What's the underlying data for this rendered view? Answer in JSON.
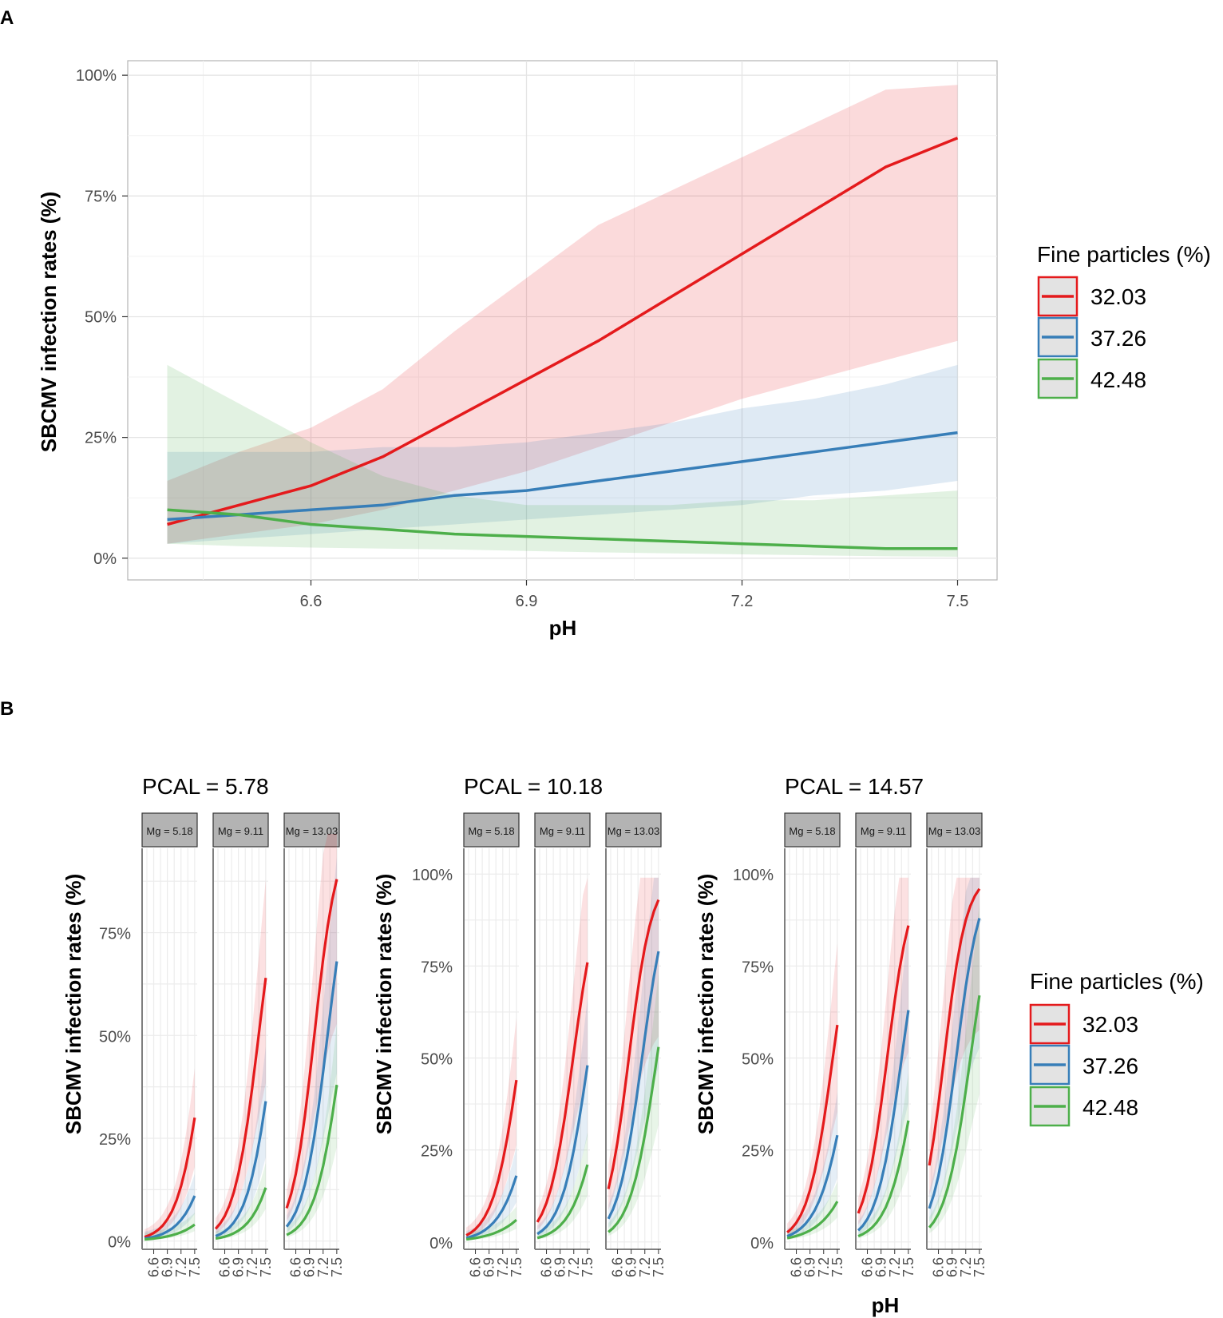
{
  "panel_labels": {
    "a": "A",
    "b": "B"
  },
  "colors": {
    "red": "#e41a1c",
    "blue": "#377eb8",
    "green": "#4daf4a",
    "grid": "#ebebeb",
    "strip": "#b3b3b3",
    "legend_key_bg": "#e3e3e3"
  },
  "legend": {
    "title": "Fine particles (%)",
    "items": [
      {
        "label": "32.03",
        "color": "#e41a1c"
      },
      {
        "label": "37.26",
        "color": "#377eb8"
      },
      {
        "label": "42.48",
        "color": "#4daf4a"
      }
    ]
  },
  "chart_data": [
    {
      "type": "line",
      "id": "panel-a",
      "title": "",
      "xlabel": "pH",
      "ylabel": "SBCMV infection rates (%)",
      "xlim": [
        6.345,
        7.555
      ],
      "ylim": [
        -0.045,
        1.03
      ],
      "x_ticks": [
        6.6,
        6.9,
        7.2,
        7.5
      ],
      "x_tick_labels": [
        "6.6",
        "6.9",
        "7.2",
        "7.5"
      ],
      "y_ticks": [
        0,
        0.25,
        0.5,
        0.75,
        1.0
      ],
      "y_tick_labels": [
        "0%",
        "25%",
        "50%",
        "75%",
        "100%"
      ],
      "x": [
        6.4,
        6.5,
        6.6,
        6.7,
        6.8,
        6.9,
        7.0,
        7.1,
        7.2,
        7.3,
        7.4,
        7.5
      ],
      "series": [
        {
          "name": "32.03",
          "color": "#e41a1c",
          "values": [
            0.07,
            0.11,
            0.15,
            0.21,
            0.29,
            0.37,
            0.45,
            0.54,
            0.63,
            0.72,
            0.81,
            0.87
          ],
          "lower": [
            0.03,
            0.05,
            0.07,
            0.1,
            0.14,
            0.18,
            0.23,
            0.28,
            0.33,
            0.37,
            0.41,
            0.45
          ],
          "upper": [
            0.16,
            0.22,
            0.27,
            0.35,
            0.47,
            0.58,
            0.69,
            0.76,
            0.83,
            0.9,
            0.97,
            0.98
          ]
        },
        {
          "name": "37.26",
          "color": "#377eb8",
          "values": [
            0.08,
            0.09,
            0.1,
            0.11,
            0.13,
            0.14,
            0.16,
            0.18,
            0.2,
            0.22,
            0.24,
            0.26
          ],
          "lower": [
            0.03,
            0.04,
            0.05,
            0.06,
            0.07,
            0.08,
            0.09,
            0.1,
            0.11,
            0.13,
            0.14,
            0.16
          ],
          "upper": [
            0.22,
            0.22,
            0.22,
            0.23,
            0.23,
            0.24,
            0.26,
            0.28,
            0.31,
            0.33,
            0.36,
            0.4
          ]
        },
        {
          "name": "42.48",
          "color": "#4daf4a",
          "values": [
            0.1,
            0.09,
            0.07,
            0.06,
            0.05,
            0.045,
            0.04,
            0.035,
            0.03,
            0.025,
            0.02,
            0.02
          ],
          "lower": [
            0.03,
            0.025,
            0.022,
            0.02,
            0.018,
            0.015,
            0.012,
            0.01,
            0.008,
            0.006,
            0.004,
            0.003
          ],
          "upper": [
            0.4,
            0.32,
            0.24,
            0.17,
            0.13,
            0.11,
            0.11,
            0.11,
            0.12,
            0.12,
            0.13,
            0.14
          ]
        }
      ]
    },
    {
      "type": "line",
      "id": "panel-b",
      "xlabel": "pH",
      "ylabel": "SBCMV infection rates (%)",
      "x_ticks": [
        6.6,
        6.9,
        7.2,
        7.5
      ],
      "x_tick_labels": [
        "6.6",
        "6.9",
        "7.2",
        "7.5"
      ],
      "y_ticks": [
        0,
        0.25,
        0.5,
        0.75,
        1.0
      ],
      "y_tick_labels": [
        "0%",
        "25%",
        "50%",
        "75%",
        "100%"
      ],
      "x": [
        6.4,
        6.5,
        6.6,
        6.7,
        6.8,
        6.9,
        7.0,
        7.1,
        7.2,
        7.3,
        7.4,
        7.5
      ],
      "plots": [
        {
          "title": "PCAL = 5.78",
          "ylim": [
            -0.02,
            0.955
          ],
          "facets": [
            {
              "strip": "Mg = 5.18",
              "end": [
                0.3,
                0.11,
                0.04
              ]
            },
            {
              "strip": "Mg = 9.11",
              "end": [
                0.64,
                0.34,
                0.13
              ]
            },
            {
              "strip": "Mg = 13.03",
              "end": [
                0.88,
                0.68,
                0.38
              ]
            }
          ]
        },
        {
          "title": "PCAL = 10.18",
          "ylim": [
            -0.02,
            1.07
          ],
          "facets": [
            {
              "strip": "Mg = 5.18",
              "end": [
                0.44,
                0.18,
                0.06
              ]
            },
            {
              "strip": "Mg = 9.11",
              "end": [
                0.76,
                0.48,
                0.21
              ]
            },
            {
              "strip": "Mg = 13.03",
              "end": [
                0.93,
                0.79,
                0.53
              ]
            }
          ]
        },
        {
          "title": "PCAL = 14.57",
          "ylim": [
            -0.02,
            1.07
          ],
          "facets": [
            {
              "strip": "Mg = 5.18",
              "end": [
                0.59,
                0.29,
                0.11
              ]
            },
            {
              "strip": "Mg = 9.11",
              "end": [
                0.86,
                0.63,
                0.33
              ]
            },
            {
              "strip": "Mg = 13.03",
              "end": [
                0.96,
                0.88,
                0.67
              ]
            }
          ]
        }
      ]
    }
  ]
}
